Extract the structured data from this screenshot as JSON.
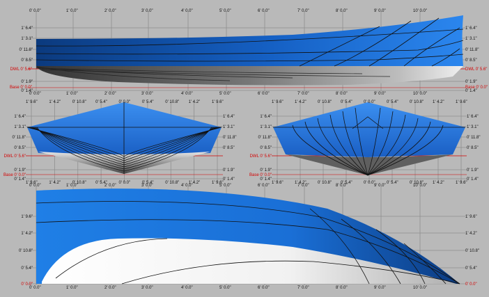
{
  "colors": {
    "background": "#b9b9b9",
    "grid": "#8f8f8f",
    "hull_blue": "#1f7fe6",
    "hull_blue_dark": "#0b3f8a",
    "reference_red": "#d40000",
    "station_line": "#111111"
  },
  "profile_view": {
    "top_ticks": [
      "0' 0.0\"",
      "1' 0.0\"",
      "2' 0.0\"",
      "3' 0.0\"",
      "4' 0.0\"",
      "5' 0.0\"",
      "6' 0.0\"",
      "7' 0.0\"",
      "8' 0.0\"",
      "9' 0.0\"",
      "10' 0.0\""
    ],
    "bottom_ticks": [
      "0' 0.0\"",
      "1' 0.0\"",
      "2' 0.0\"",
      "3' 0.0\"",
      "4' 0.0\"",
      "5' 0.0\"",
      "6' 0.0\"",
      "7' 0.0\"",
      "8' 0.0\"",
      "9' 0.0\"",
      "10' 0.0\""
    ],
    "left_ticks": [
      "1' 6.4\"",
      "1' 3.1\"",
      "0' 11.8\"",
      "0' 8.5\"",
      "0' 1.9\"",
      "0' 1.4\""
    ],
    "right_ticks": [
      "1' 6.4\"",
      "1' 3.1\"",
      "0' 11.8\"",
      "0' 8.5\"",
      "0' 1.9\"",
      "0' 1.4\""
    ],
    "dwl_left": "DWL 0' 5.6\"",
    "dwl_right": "DWL 0' 5.6\"",
    "base_left": "Base 0' 0.0\"",
    "base_right": "Base 0' 0.0\""
  },
  "body_view_left": {
    "top_ticks": [
      "1' 9.6\"",
      "1' 4.2\"",
      "0' 10.8\"",
      "0' 5.4\"",
      "0' 0.0\"",
      "0' 5.4\"",
      "0' 10.8\"",
      "1' 4.2\"",
      "1' 9.6\""
    ],
    "bottom_ticks": [
      "1' 9.6\"",
      "1' 4.2\"",
      "0' 10.8\"",
      "0' 5.4\"",
      "0' 0.0\"",
      "0' 5.4\"",
      "0' 10.8\"",
      "1' 4.2\"",
      "1' 9.6\""
    ],
    "left_ticks": [
      "1' 6.4\"",
      "1' 3.1\"",
      "0' 11.8\"",
      "0' 8.5\"",
      "0' 1.9\"",
      "0' 1.4\""
    ],
    "right_ticks": [
      "1' 6.4\"",
      "1' 3.1\"",
      "0' 11.8\"",
      "0' 8.5\"",
      "0' 1.9\"",
      "0' 1.4\""
    ],
    "dwl": "DWL 0' 5.6\"",
    "base": "Base 0' 0.0\""
  },
  "body_view_right": {
    "top_ticks": [
      "1' 9.6\"",
      "1' 4.2\"",
      "0' 10.8\"",
      "0' 5.4\"",
      "0' 0.0\"",
      "0' 5.4\"",
      "0' 10.8\"",
      "1' 4.2\"",
      "1' 9.6\""
    ],
    "bottom_ticks": [
      "1' 9.6\"",
      "1' 4.2\"",
      "0' 10.8\"",
      "0' 5.4\"",
      "0' 0.0\"",
      "0' 5.4\"",
      "0' 10.8\"",
      "1' 4.2\"",
      "1' 9.6\""
    ],
    "left_ticks": [
      "1' 6.4\"",
      "1' 3.1\"",
      "0' 11.8\"",
      "0' 8.5\"",
      "0' 1.9\"",
      "0' 1.4\""
    ],
    "right_ticks": [
      "1' 6.4\"",
      "1' 3.1\"",
      "0' 11.8\"",
      "0' 8.5\"",
      "0' 1.9\"",
      "0' 1.4\""
    ],
    "dwl": "DWL 0' 5.6\"",
    "base": "Base 0' 0.0\""
  },
  "plan_view": {
    "top_ticks": [
      "0' 0.0\"",
      "1' 0.0\"",
      "2' 0.0\"",
      "3' 0.0\"",
      "4' 0.0\"",
      "5' 0.0\"",
      "6' 0.0\"",
      "7' 0.0\"",
      "8' 0.0\"",
      "9' 0.0\"",
      "10' 0.0\""
    ],
    "bottom_ticks": [
      "0' 0.0\"",
      "1' 0.0\"",
      "2' 0.0\"",
      "3' 0.0\"",
      "4' 0.0\"",
      "5' 0.0\"",
      "6' 0.0\"",
      "7' 0.0\"",
      "8' 0.0\"",
      "9' 0.0\"",
      "10' 0.0\""
    ],
    "left_ticks": [
      "1' 9.6\"",
      "1' 4.2\"",
      "0' 10.8\"",
      "0' 5.4\"",
      "0' 0.0\""
    ],
    "right_ticks": [
      "1' 9.6\"",
      "1' 4.2\"",
      "0' 10.8\"",
      "0' 5.4\"",
      "0' 0.0\""
    ]
  }
}
